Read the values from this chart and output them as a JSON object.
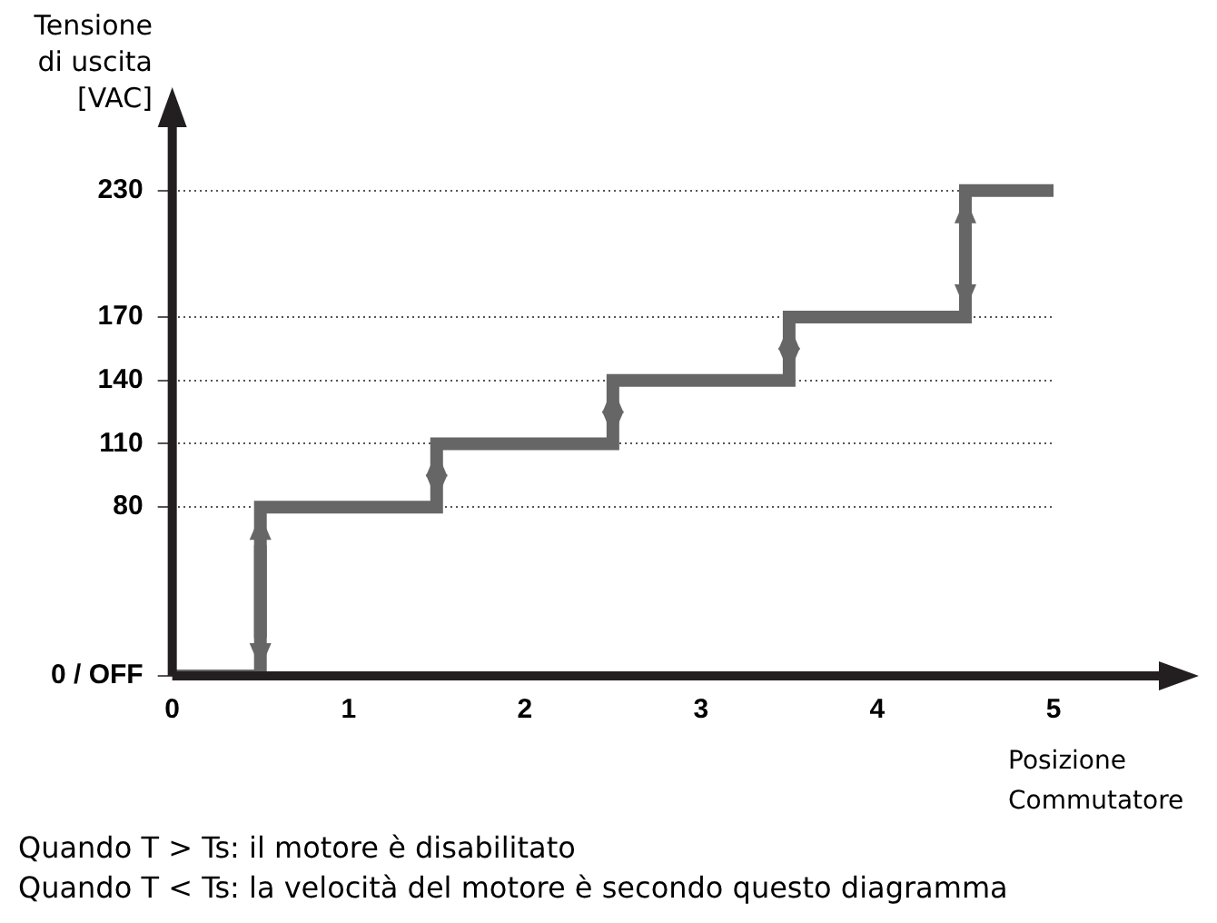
{
  "chart_data": {
    "type": "step",
    "ylabel": "Tensione di uscita [VAC]",
    "xlabel": "Posizione Commutatore",
    "categories": [
      "0",
      "1",
      "2",
      "3",
      "4",
      "5"
    ],
    "values": [
      0,
      80,
      110,
      140,
      170,
      230
    ],
    "color": "#666666",
    "ylim": [
      0,
      260
    ],
    "yticks": [
      {
        "value": 0,
        "label": "0 / OFF"
      },
      80,
      110,
      140,
      170,
      230
    ],
    "grid": "y",
    "annotations": [
      "Quando T > Ts: il motore è disabilitato",
      "Quando T < Ts: la velocità del motore è secondo questo diagramma"
    ]
  }
}
